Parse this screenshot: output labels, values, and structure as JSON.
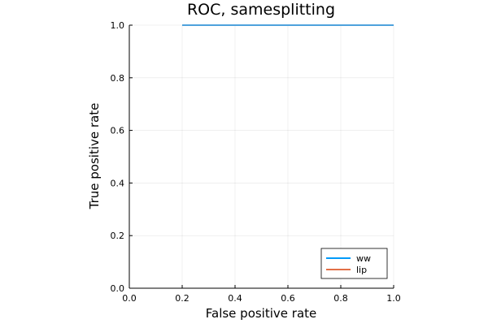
{
  "chart_data": {
    "type": "line",
    "title": "ROC, samesplitting",
    "xlabel": "False positive rate",
    "ylabel": "True positive rate",
    "xlim": [
      0.0,
      1.0
    ],
    "ylim": [
      0.0,
      1.0
    ],
    "xticks": [
      0.0,
      0.2,
      0.4,
      0.6,
      0.8,
      1.0
    ],
    "yticks": [
      0.0,
      0.2,
      0.4,
      0.6,
      0.8,
      1.0
    ],
    "xtick_labels": [
      "0.0",
      "0.2",
      "0.4",
      "0.6",
      "0.8",
      "1.0"
    ],
    "ytick_labels": [
      "0.0",
      "0.2",
      "0.4",
      "0.6",
      "0.8",
      "1.0"
    ],
    "grid": true,
    "legend_position": "bottom-right",
    "series": [
      {
        "name": "ww",
        "color": "#009af9",
        "x": [
          0.2,
          1.0
        ],
        "y": [
          1.0,
          1.0
        ]
      },
      {
        "name": "lip",
        "color": "#e26f46",
        "x": [
          0.2,
          1.0
        ],
        "y": [
          1.0,
          1.0
        ]
      }
    ]
  }
}
